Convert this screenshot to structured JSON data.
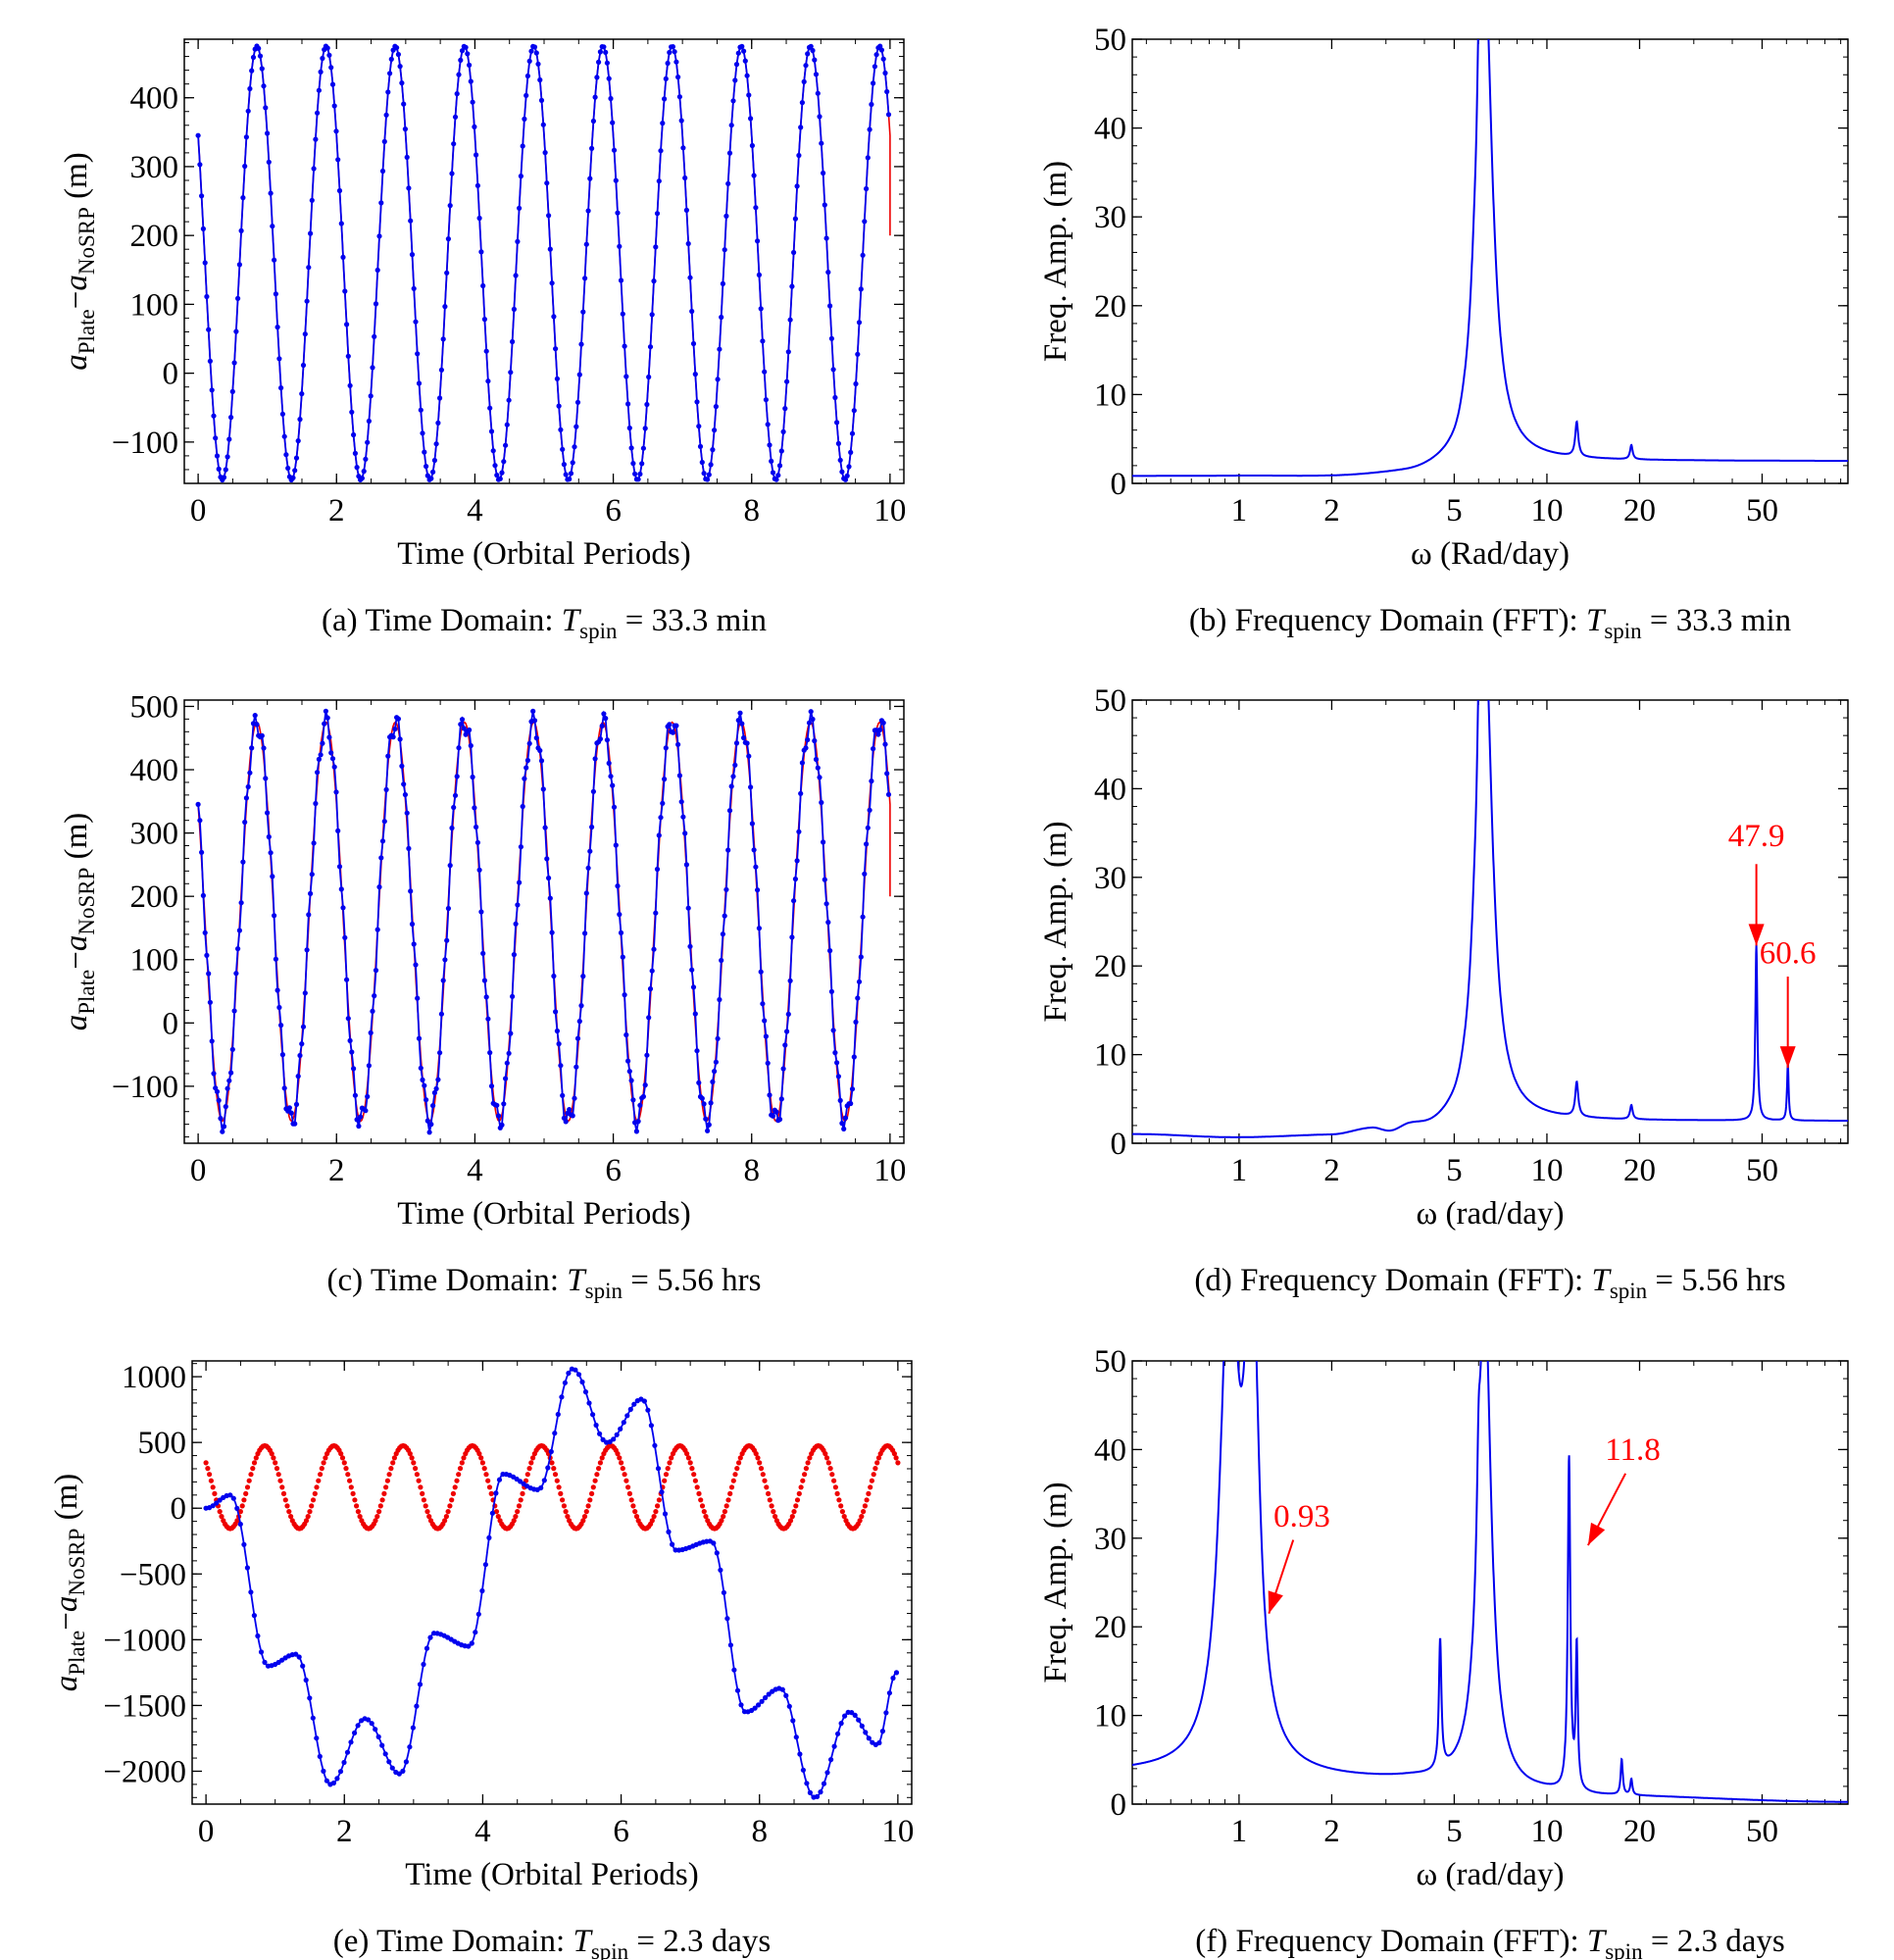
{
  "colors": {
    "blue": "#0000ee",
    "red": "#ee0000",
    "axis": "#000000",
    "annotation": "#ff0000"
  },
  "chart_data": [
    {
      "id": "a",
      "type": "scatter",
      "panel": "time",
      "caption": {
        "prefix": "(a) Time Domain: ",
        "T": "T",
        "sub": "spin",
        "suffix": " = 33.3 min"
      },
      "xlabel": "Time (Orbital Periods)",
      "ylabel": {
        "a1": "a",
        "sub1": "Plate",
        "dash": "−",
        "a2": "a",
        "sub2": "NoSRP",
        "unit": " (m)"
      },
      "xlim": [
        -0.2,
        10.2
      ],
      "ylim": [
        -160,
        485
      ],
      "xticks": [
        0,
        2,
        4,
        6,
        8,
        10
      ],
      "xtick_labels": [
        "0",
        "2",
        "4",
        "6",
        "8",
        "10"
      ],
      "yticks": [
        -100,
        0,
        100,
        200,
        300,
        400
      ],
      "ytick_labels": [
        "−100",
        "0",
        "100",
        "200",
        "300",
        "400"
      ],
      "series": [
        {
          "color": "red",
          "kind": "line",
          "model": {
            "base": 160,
            "amp": 315,
            "freq": 1.0,
            "phase": -0.1,
            "x0": 0,
            "x1": 10,
            "end_extra": 200
          }
        },
        {
          "color": "blue",
          "kind": "points+line",
          "model": {
            "base": 160,
            "amp": 315,
            "freq": 1.0,
            "phase": -0.1,
            "x0": 0,
            "x1": 9.98,
            "n": 400
          }
        }
      ]
    },
    {
      "id": "b",
      "type": "line",
      "panel": "freq",
      "caption": {
        "prefix": "(b) Frequency Domain (FFT): ",
        "T": "T",
        "sub": "spin",
        "suffix": " = 33.3 min"
      },
      "xlabel": "ω (Rad/day)",
      "ylabel": "Freq. Amp. (m)",
      "xscale": "log",
      "xlim": [
        0.45,
        95
      ],
      "ylim": [
        0,
        50
      ],
      "xticks": [
        1,
        2,
        5,
        10,
        20,
        50
      ],
      "xtick_labels": [
        "1",
        "2",
        "5",
        "10",
        "20",
        "50"
      ],
      "yticks": [
        0,
        10,
        20,
        30,
        40,
        50
      ],
      "ytick_labels": [
        "0",
        "10",
        "20",
        "30",
        "40",
        "50"
      ],
      "baseline": [
        [
          0.45,
          0.8
        ],
        [
          1.0,
          0.8
        ],
        [
          2.0,
          0.7
        ],
        [
          3.5,
          0.9
        ],
        [
          5.0,
          1.4
        ],
        [
          5.6,
          2.5
        ]
      ],
      "peaks": [
        {
          "x": 5.8,
          "y": 3.5,
          "w": 0.012
        },
        {
          "x": 6.0,
          "y": 10.0,
          "w": 0.006
        },
        {
          "x": 6.28,
          "y": 55,
          "w": 0.03
        },
        {
          "x": 12.5,
          "y": 3.9,
          "w": 0.006
        },
        {
          "x": 18.8,
          "y": 1.6,
          "w": 0.005
        }
      ],
      "annotations": []
    },
    {
      "id": "c",
      "type": "scatter",
      "panel": "time",
      "caption": {
        "prefix": "(c) Time Domain: ",
        "T": "T",
        "sub": "spin",
        "suffix": " = 5.56 hrs"
      },
      "xlabel": "Time (Orbital Periods)",
      "ylabel": {
        "a1": "a",
        "sub1": "Plate",
        "dash": "−",
        "a2": "a",
        "sub2": "NoSRP",
        "unit": " (m)"
      },
      "xlim": [
        -0.2,
        10.2
      ],
      "ylim": [
        -190,
        510
      ],
      "xticks": [
        0,
        2,
        4,
        6,
        8,
        10
      ],
      "xtick_labels": [
        "0",
        "2",
        "4",
        "6",
        "8",
        "10"
      ],
      "yticks": [
        -100,
        0,
        100,
        200,
        300,
        400,
        500
      ],
      "ytick_labels": [
        "−100",
        "0",
        "100",
        "200",
        "300",
        "400",
        "500"
      ],
      "series": [
        {
          "color": "red",
          "kind": "line",
          "model": {
            "base": 160,
            "amp": 315,
            "freq": 1.0,
            "phase": -0.1,
            "x0": 0,
            "x1": 10,
            "end_extra": 200
          }
        },
        {
          "color": "blue",
          "kind": "points+line",
          "model": {
            "base": 160,
            "amp": 315,
            "freq": 1.0,
            "phase": -0.1,
            "x0": 0,
            "x1": 9.98,
            "n": 400,
            "ripple": 18,
            "ripple_freq": 7.7
          }
        }
      ]
    },
    {
      "id": "d",
      "type": "line",
      "panel": "freq",
      "caption": {
        "prefix": "(d) Frequency Domain (FFT): ",
        "T": "T",
        "sub": "spin",
        "suffix": " = 5.56 hrs"
      },
      "xlabel": "ω (rad/day)",
      "ylabel": "Freq. Amp. (m)",
      "xscale": "log",
      "xlim": [
        0.45,
        95
      ],
      "ylim": [
        0,
        50
      ],
      "xticks": [
        1,
        2,
        5,
        10,
        20,
        50
      ],
      "xtick_labels": [
        "1",
        "2",
        "5",
        "10",
        "20",
        "50"
      ],
      "yticks": [
        0,
        10,
        20,
        30,
        40,
        50
      ],
      "ytick_labels": [
        "0",
        "10",
        "20",
        "30",
        "40",
        "50"
      ],
      "baseline": [
        [
          0.45,
          1.0
        ],
        [
          1.0,
          0.6
        ],
        [
          2.0,
          0.8
        ],
        [
          2.7,
          1.4
        ],
        [
          3.1,
          0.9
        ],
        [
          3.6,
          1.5
        ],
        [
          4.2,
          1.2
        ],
        [
          5.0,
          1.5
        ],
        [
          5.6,
          2.5
        ]
      ],
      "peaks": [
        {
          "x": 5.8,
          "y": 3.5,
          "w": 0.012
        },
        {
          "x": 6.0,
          "y": 10.0,
          "w": 0.006
        },
        {
          "x": 6.28,
          "y": 55,
          "w": 0.03
        },
        {
          "x": 12.5,
          "y": 3.9,
          "w": 0.006
        },
        {
          "x": 18.8,
          "y": 1.6,
          "w": 0.005
        },
        {
          "x": 47.9,
          "y": 19.8,
          "w": 0.004
        },
        {
          "x": 60.6,
          "y": 6.5,
          "w": 0.003
        }
      ],
      "annotations": [
        {
          "text": "47.9",
          "x": 47.9,
          "label_y": 33.5,
          "arrow_from_y": 31.5,
          "arrow_to_y": 22.3
        },
        {
          "text": "60.6",
          "x": 60.6,
          "label_y": 20.3,
          "arrow_from_y": 18.8,
          "arrow_to_y": 8.5
        }
      ]
    },
    {
      "id": "e",
      "type": "scatter",
      "panel": "time",
      "caption": {
        "prefix": "(e) Time Domain: ",
        "T": "T",
        "sub": "spin",
        "suffix": " = 2.3 days"
      },
      "xlabel": "Time (Orbital Periods)",
      "ylabel": {
        "a1": "a",
        "sub1": "Plate",
        "dash": "−",
        "a2": "a",
        "sub2": "NoSRP",
        "unit": " (m)"
      },
      "xlim": [
        -0.2,
        10.2
      ],
      "ylim": [
        -2250,
        1120
      ],
      "xticks": [
        0,
        2,
        4,
        6,
        8,
        10
      ],
      "xtick_labels": [
        "0",
        "2",
        "4",
        "6",
        "8",
        "10"
      ],
      "yticks": [
        -2000,
        -1500,
        -1000,
        -500,
        0,
        500,
        1000
      ],
      "ytick_labels": [
        "−2000",
        "−1500",
        "−1000",
        "−500",
        "0",
        "500",
        "1000"
      ],
      "series": [
        {
          "color": "red",
          "kind": "points",
          "model": {
            "base": 160,
            "amp": 315,
            "freq": 1.0,
            "phase": -0.1,
            "x0": 0,
            "x1": 10,
            "n": 400
          }
        },
        {
          "color": "blue",
          "kind": "points+line",
          "keys": [
            [
              0.0,
              0
            ],
            [
              0.35,
              100
            ],
            [
              0.9,
              -1200
            ],
            [
              1.3,
              -1110
            ],
            [
              1.8,
              -2100
            ],
            [
              2.3,
              -1600
            ],
            [
              2.8,
              -2020
            ],
            [
              3.3,
              -950
            ],
            [
              3.8,
              -1050
            ],
            [
              4.3,
              260
            ],
            [
              4.8,
              140
            ],
            [
              5.3,
              1060
            ],
            [
              5.8,
              500
            ],
            [
              6.3,
              830
            ],
            [
              6.8,
              -320
            ],
            [
              7.3,
              -250
            ],
            [
              7.8,
              -1550
            ],
            [
              8.3,
              -1370
            ],
            [
              8.8,
              -2200
            ],
            [
              9.3,
              -1550
            ],
            [
              9.7,
              -1800
            ],
            [
              9.98,
              -1250
            ]
          ]
        }
      ]
    },
    {
      "id": "f",
      "type": "line",
      "panel": "freq",
      "caption": {
        "prefix": "(f) Frequency Domain (FFT): ",
        "T": "T",
        "sub": "spin",
        "suffix": " = 2.3 days"
      },
      "xlabel": "ω (rad/day)",
      "ylabel": "Freq. Amp. (m)",
      "xscale": "log",
      "xlim": [
        0.45,
        95
      ],
      "ylim": [
        0,
        50
      ],
      "xticks": [
        1,
        2,
        5,
        10,
        20,
        50
      ],
      "xtick_labels": [
        "1",
        "2",
        "5",
        "10",
        "20",
        "50"
      ],
      "yticks": [
        0,
        10,
        20,
        30,
        40,
        50
      ],
      "ytick_labels": [
        "0",
        "10",
        "20",
        "30",
        "40",
        "50"
      ],
      "baseline": [
        [
          0.45,
          3.5
        ],
        [
          3.5,
          2.6
        ],
        [
          4.4,
          2.4
        ],
        [
          5.5,
          2.3
        ],
        [
          9.0,
          1.2
        ],
        [
          15.0,
          0.8
        ],
        [
          95,
          0.2
        ]
      ],
      "peaks": [
        {
          "x": 0.93,
          "y": 55,
          "w": 0.035
        },
        {
          "x": 1.1,
          "y": 55,
          "w": 0.025
        },
        {
          "x": 4.5,
          "y": 14.5,
          "w": 0.005
        },
        {
          "x": 6.0,
          "y": 9.0,
          "w": 0.006
        },
        {
          "x": 6.28,
          "y": 55,
          "w": 0.025
        },
        {
          "x": 11.8,
          "y": 37.5,
          "w": 0.005
        },
        {
          "x": 12.5,
          "y": 16.0,
          "w": 0.004
        },
        {
          "x": 17.5,
          "y": 4.0,
          "w": 0.004
        },
        {
          "x": 18.8,
          "y": 1.8,
          "w": 0.004
        }
      ],
      "annotations": [
        {
          "text": "0.93",
          "label_x": 1.6,
          "label_y": 31.3,
          "from": [
            1.5,
            29.8
          ],
          "to": [
            1.25,
            21.5
          ]
        },
        {
          "text": "11.8",
          "label_x": 19.0,
          "label_y": 38.8,
          "from": [
            18.0,
            37.3
          ],
          "to": [
            13.6,
            29.2
          ]
        }
      ]
    }
  ]
}
